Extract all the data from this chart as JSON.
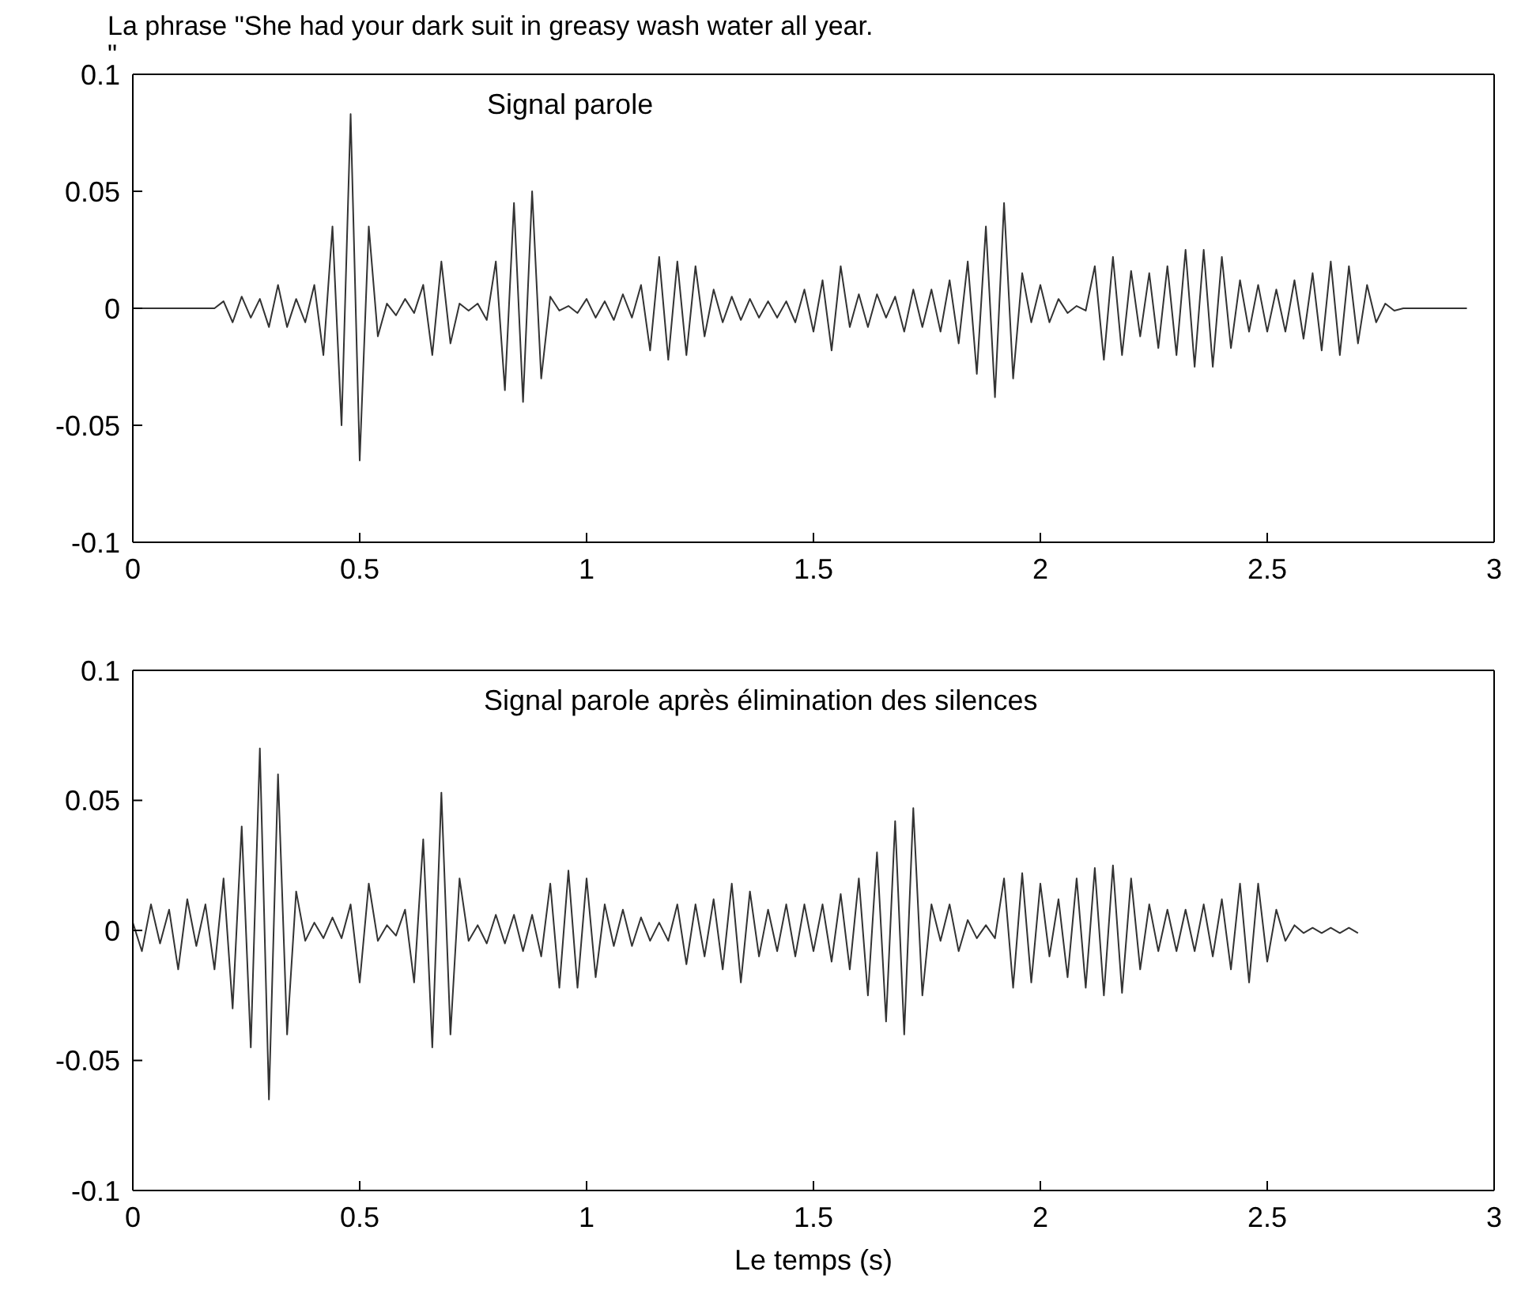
{
  "chart_data": [
    {
      "type": "line",
      "title": "La phrase \"She had your dark suit in greasy wash water all year.\n\"",
      "annotations": [
        "Signal parole"
      ],
      "x": [
        0,
        0.02,
        0.04,
        0.06,
        0.08,
        0.1,
        0.12,
        0.14,
        0.16,
        0.18,
        0.2,
        0.22,
        0.24,
        0.26,
        0.28,
        0.3,
        0.32,
        0.34,
        0.36,
        0.38,
        0.4,
        0.42,
        0.44,
        0.46,
        0.48,
        0.5,
        0.52,
        0.54,
        0.56,
        0.58,
        0.6,
        0.62,
        0.64,
        0.66,
        0.68,
        0.7,
        0.72,
        0.74,
        0.76,
        0.78,
        0.8,
        0.82,
        0.84,
        0.86,
        0.88,
        0.9,
        0.92,
        0.94,
        0.96,
        0.98,
        1,
        1.02,
        1.04,
        1.06,
        1.08,
        1.1,
        1.12,
        1.14,
        1.16,
        1.18,
        1.2,
        1.22,
        1.24,
        1.26,
        1.28,
        1.3,
        1.32,
        1.34,
        1.36,
        1.38,
        1.4,
        1.42,
        1.44,
        1.46,
        1.48,
        1.5,
        1.52,
        1.54,
        1.56,
        1.58,
        1.6,
        1.62,
        1.64,
        1.66,
        1.68,
        1.7,
        1.72,
        1.74,
        1.76,
        1.78,
        1.8,
        1.82,
        1.84,
        1.86,
        1.88,
        1.9,
        1.92,
        1.94,
        1.96,
        1.98,
        2,
        2.02,
        2.04,
        2.06,
        2.08,
        2.1,
        2.12,
        2.14,
        2.16,
        2.18,
        2.2,
        2.22,
        2.24,
        2.26,
        2.28,
        2.3,
        2.32,
        2.34,
        2.36,
        2.38,
        2.4,
        2.42,
        2.44,
        2.46,
        2.48,
        2.5,
        2.52,
        2.54,
        2.56,
        2.58,
        2.6,
        2.62,
        2.64,
        2.66,
        2.68,
        2.7,
        2.72,
        2.74,
        2.76,
        2.78,
        2.8,
        2.82,
        2.84,
        2.86,
        2.88,
        2.9,
        2.92,
        2.94
      ],
      "series": [
        {
          "color": "#333333",
          "values": [
            0,
            0,
            0,
            0,
            0,
            0,
            0,
            0,
            0,
            0,
            0.003,
            -0.006,
            0.005,
            -0.004,
            0.004,
            -0.008,
            0.01,
            -0.008,
            0.004,
            -0.006,
            0.01,
            -0.02,
            0.035,
            -0.05,
            0.083,
            -0.065,
            0.035,
            -0.012,
            0.002,
            -0.003,
            0.004,
            -0.002,
            0.01,
            -0.02,
            0.02,
            -0.015,
            0.002,
            -0.001,
            0.002,
            -0.005,
            0.02,
            -0.035,
            0.045,
            -0.04,
            0.05,
            -0.03,
            0.005,
            -0.001,
            0.001,
            -0.002,
            0.004,
            -0.004,
            0.003,
            -0.005,
            0.006,
            -0.004,
            0.01,
            -0.018,
            0.022,
            -0.022,
            0.02,
            -0.02,
            0.018,
            -0.012,
            0.008,
            -0.006,
            0.005,
            -0.005,
            0.004,
            -0.004,
            0.003,
            -0.004,
            0.003,
            -0.006,
            0.008,
            -0.01,
            0.012,
            -0.018,
            0.018,
            -0.008,
            0.006,
            -0.008,
            0.006,
            -0.004,
            0.005,
            -0.01,
            0.008,
            -0.008,
            0.008,
            -0.01,
            0.012,
            -0.015,
            0.02,
            -0.028,
            0.035,
            -0.038,
            0.045,
            -0.03,
            0.015,
            -0.006,
            0.01,
            -0.006,
            0.004,
            -0.002,
            0.001,
            -0.001,
            0.018,
            -0.022,
            0.022,
            -0.02,
            0.016,
            -0.012,
            0.015,
            -0.017,
            0.018,
            -0.02,
            0.025,
            -0.025,
            0.025,
            -0.025,
            0.022,
            -0.017,
            0.012,
            -0.01,
            0.01,
            -0.01,
            0.008,
            -0.01,
            0.012,
            -0.013,
            0.015,
            -0.018,
            0.02,
            -0.02,
            0.018,
            -0.015,
            0.01,
            -0.006,
            0.002,
            -0.001,
            0,
            0,
            0,
            0,
            0,
            0,
            0,
            0
          ]
        }
      ],
      "xlim": [
        0,
        3
      ],
      "xticks": [
        0,
        0.5,
        1,
        1.5,
        2,
        2.5,
        3
      ],
      "ylim": [
        -0.1,
        0.1
      ],
      "yticks": [
        -0.1,
        -0.05,
        0,
        0.05,
        0.1
      ],
      "grid": false,
      "legend": false,
      "marker": "none",
      "line_style": "solid"
    },
    {
      "type": "line",
      "xlabel": "Le temps (s)",
      "annotations": [
        "Signal parole après élimination des silences"
      ],
      "x": [
        0,
        0.02,
        0.04,
        0.06,
        0.08,
        0.1,
        0.12,
        0.14,
        0.16,
        0.18,
        0.2,
        0.22,
        0.24,
        0.26,
        0.28,
        0.3,
        0.32,
        0.34,
        0.36,
        0.38,
        0.4,
        0.42,
        0.44,
        0.46,
        0.48,
        0.5,
        0.52,
        0.54,
        0.56,
        0.58,
        0.6,
        0.62,
        0.64,
        0.66,
        0.68,
        0.7,
        0.72,
        0.74,
        0.76,
        0.78,
        0.8,
        0.82,
        0.84,
        0.86,
        0.88,
        0.9,
        0.92,
        0.94,
        0.96,
        0.98,
        1,
        1.02,
        1.04,
        1.06,
        1.08,
        1.1,
        1.12,
        1.14,
        1.16,
        1.18,
        1.2,
        1.22,
        1.24,
        1.26,
        1.28,
        1.3,
        1.32,
        1.34,
        1.36,
        1.38,
        1.4,
        1.42,
        1.44,
        1.46,
        1.48,
        1.5,
        1.52,
        1.54,
        1.56,
        1.58,
        1.6,
        1.62,
        1.64,
        1.66,
        1.68,
        1.7,
        1.72,
        1.74,
        1.76,
        1.78,
        1.8,
        1.82,
        1.84,
        1.86,
        1.88,
        1.9,
        1.92,
        1.94,
        1.96,
        1.98,
        2,
        2.02,
        2.04,
        2.06,
        2.08,
        2.1,
        2.12,
        2.14,
        2.16,
        2.18,
        2.2,
        2.22,
        2.24,
        2.26,
        2.28,
        2.3,
        2.32,
        2.34,
        2.36,
        2.38,
        2.4,
        2.42,
        2.44,
        2.46,
        2.48,
        2.5,
        2.52,
        2.54,
        2.56,
        2.58,
        2.6,
        2.62,
        2.64,
        2.66,
        2.68,
        2.7
      ],
      "series": [
        {
          "color": "#333333",
          "values": [
            0.003,
            -0.008,
            0.01,
            -0.005,
            0.008,
            -0.015,
            0.012,
            -0.006,
            0.01,
            -0.015,
            0.02,
            -0.03,
            0.04,
            -0.045,
            0.07,
            -0.065,
            0.06,
            -0.04,
            0.015,
            -0.004,
            0.003,
            -0.003,
            0.005,
            -0.003,
            0.01,
            -0.02,
            0.018,
            -0.004,
            0.002,
            -0.002,
            0.008,
            -0.02,
            0.035,
            -0.045,
            0.053,
            -0.04,
            0.02,
            -0.004,
            0.002,
            -0.005,
            0.006,
            -0.005,
            0.006,
            -0.008,
            0.006,
            -0.01,
            0.018,
            -0.022,
            0.023,
            -0.022,
            0.02,
            -0.018,
            0.01,
            -0.006,
            0.008,
            -0.006,
            0.005,
            -0.004,
            0.003,
            -0.004,
            0.01,
            -0.013,
            0.01,
            -0.01,
            0.012,
            -0.015,
            0.018,
            -0.02,
            0.015,
            -0.01,
            0.008,
            -0.008,
            0.01,
            -0.01,
            0.01,
            -0.008,
            0.01,
            -0.012,
            0.014,
            -0.015,
            0.02,
            -0.025,
            0.03,
            -0.035,
            0.042,
            -0.04,
            0.047,
            -0.025,
            0.01,
            -0.004,
            0.01,
            -0.008,
            0.004,
            -0.003,
            0.002,
            -0.003,
            0.02,
            -0.022,
            0.022,
            -0.02,
            0.018,
            -0.01,
            0.012,
            -0.018,
            0.02,
            -0.022,
            0.024,
            -0.025,
            0.025,
            -0.024,
            0.02,
            -0.015,
            0.01,
            -0.008,
            0.008,
            -0.008,
            0.008,
            -0.008,
            0.01,
            -0.01,
            0.012,
            -0.015,
            0.018,
            -0.02,
            0.018,
            -0.012,
            0.008,
            -0.004,
            0.002,
            -0.001,
            0.001,
            -0.001,
            0.001,
            -0.001,
            0.001,
            -0.001
          ]
        }
      ],
      "xlim": [
        0,
        3
      ],
      "xticks": [
        0,
        0.5,
        1,
        1.5,
        2,
        2.5,
        3
      ],
      "ylim": [
        -0.1,
        0.1
      ],
      "yticks": [
        -0.1,
        -0.05,
        0,
        0.05,
        0.1
      ],
      "grid": false,
      "legend": false,
      "marker": "none",
      "line_style": "solid"
    }
  ]
}
